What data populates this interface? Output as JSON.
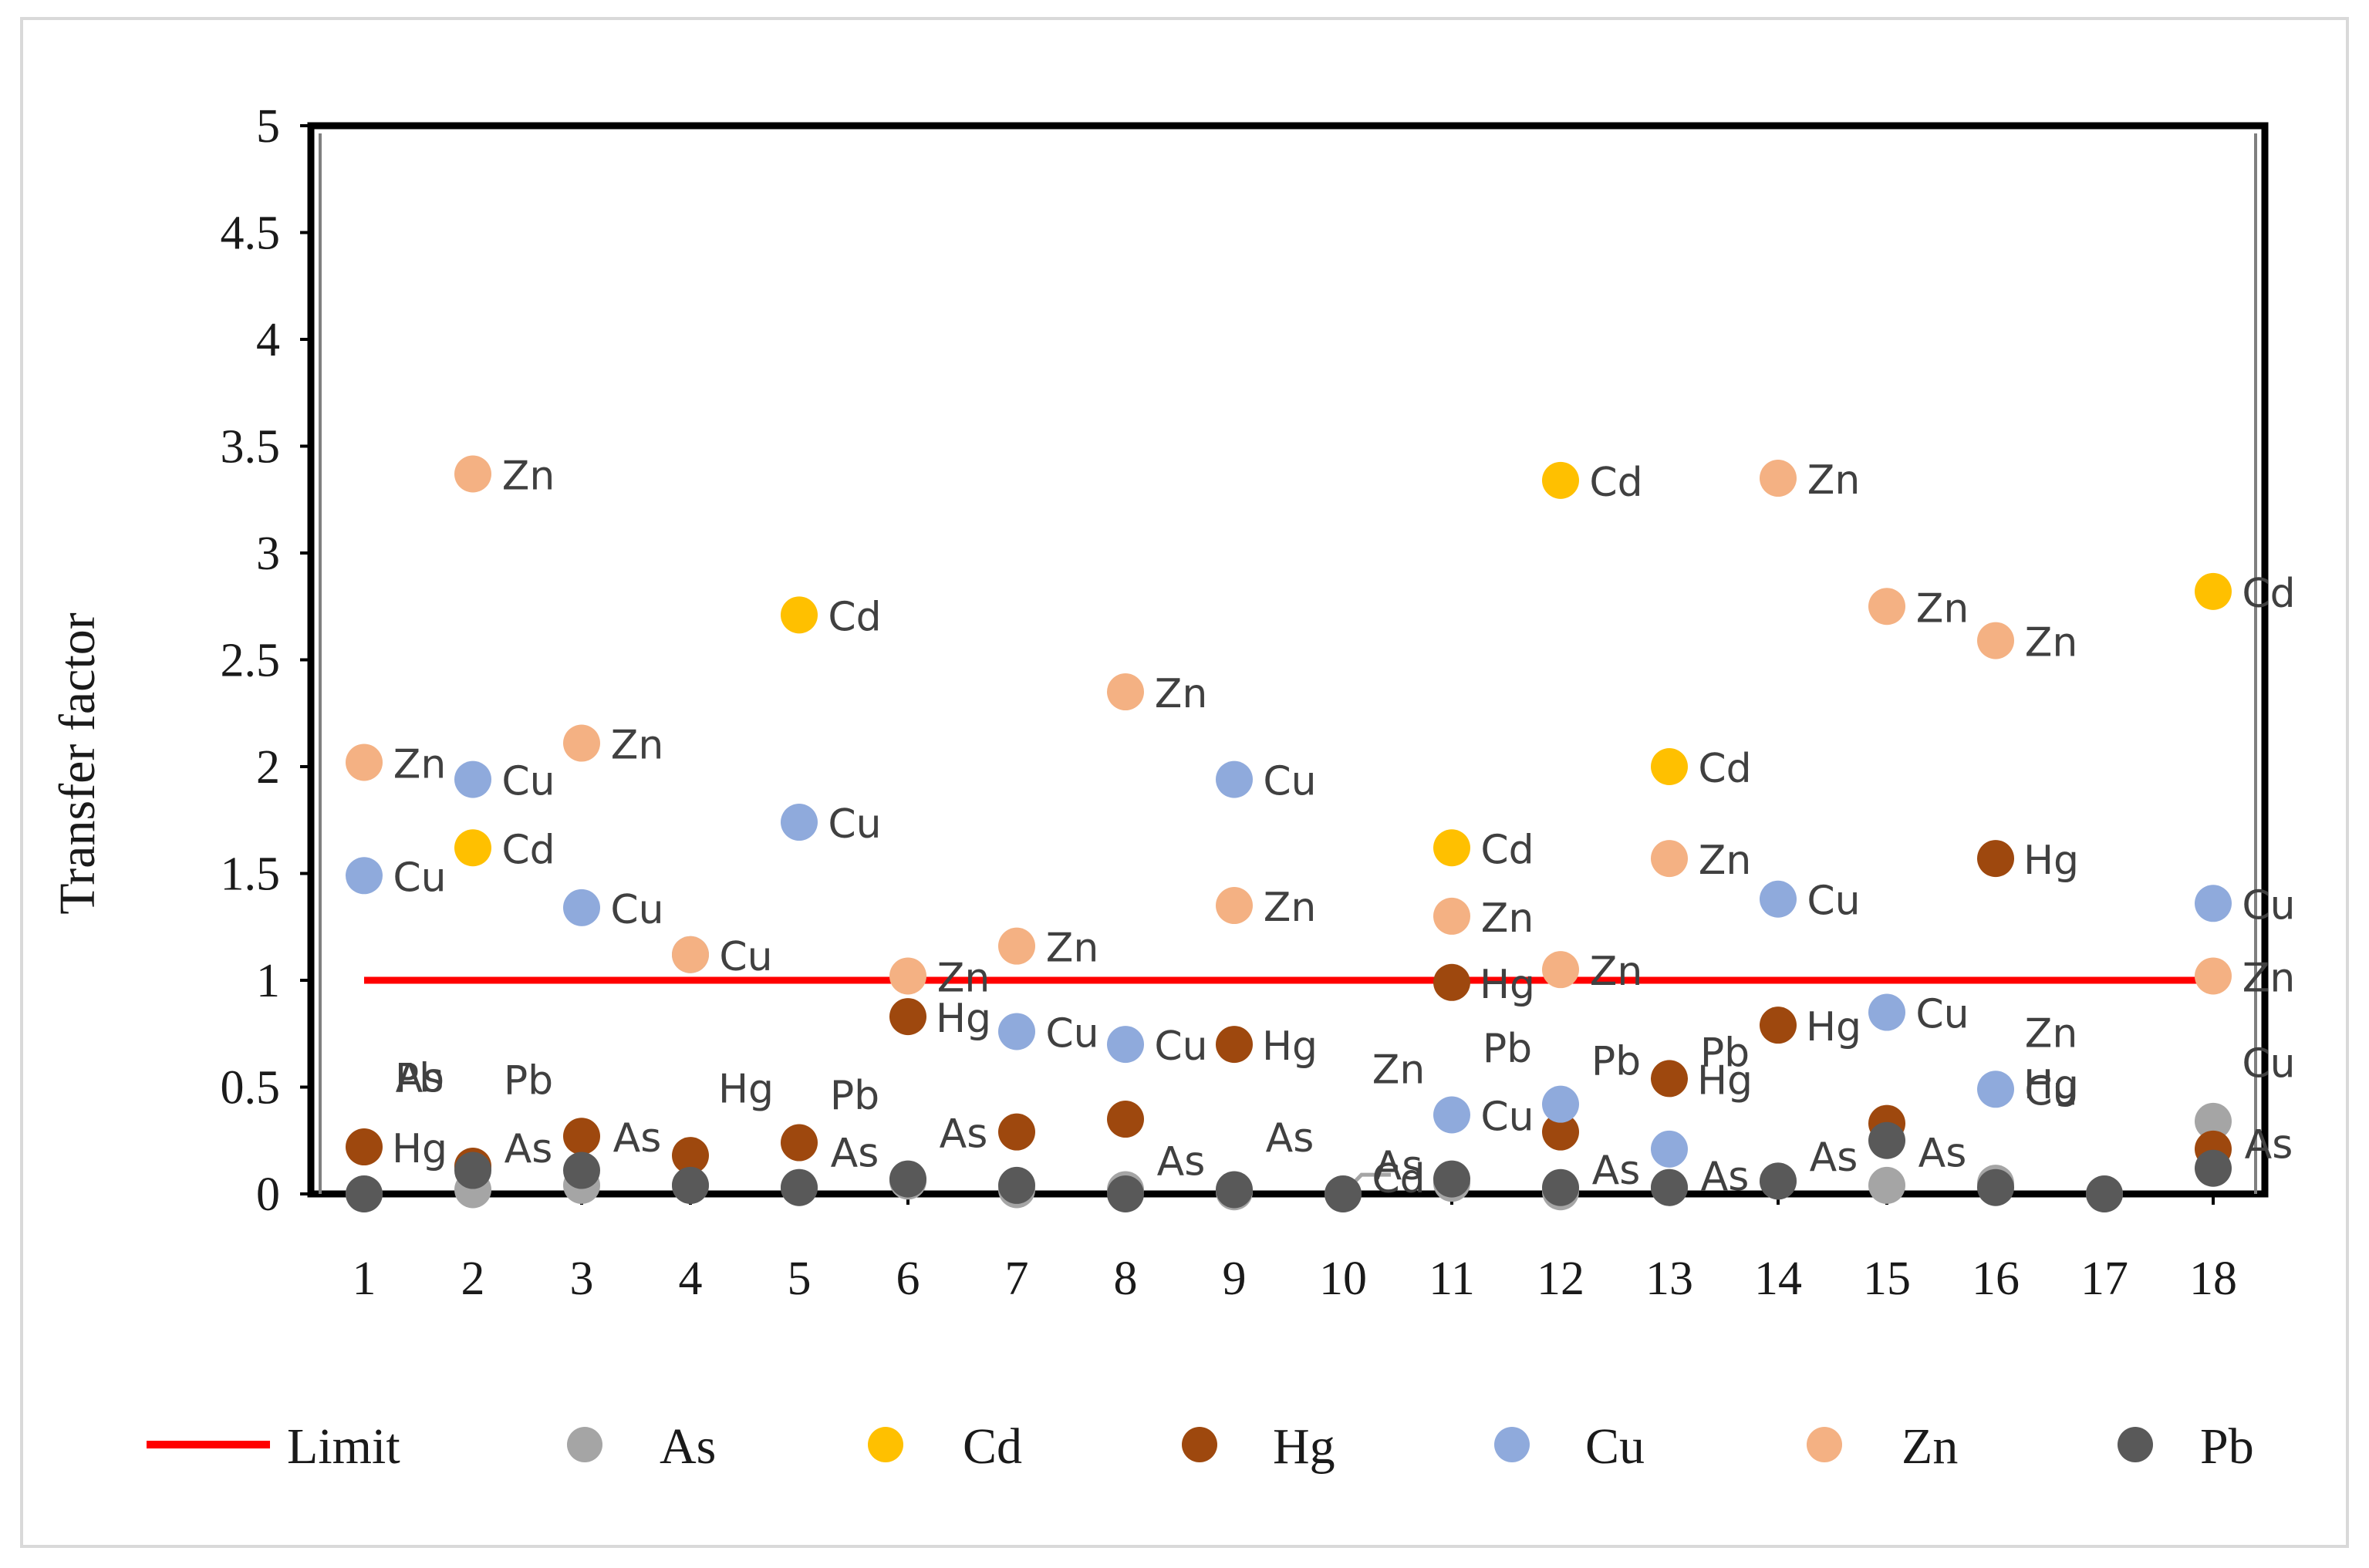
{
  "chart_data": {
    "type": "scatter",
    "title": "",
    "xlabel": "",
    "ylabel": "Transfer factor",
    "ylim": [
      0,
      5
    ],
    "y_ticks": [
      "0",
      "0.5",
      "1",
      "1.5",
      "2",
      "2.5",
      "3",
      "3.5",
      "4",
      "4.5",
      "5"
    ],
    "x_ticks": [
      "1",
      "2",
      "3",
      "4",
      "5",
      "6",
      "7",
      "8",
      "9",
      "10",
      "11",
      "12",
      "13",
      "14",
      "15",
      "16",
      "17",
      "18"
    ],
    "grid": false,
    "legend_position": "bottom",
    "legend": [
      "Limit",
      "As",
      "Cd",
      "Hg",
      "Cu",
      "Zn",
      "Pb"
    ],
    "limit": {
      "name": "Limit",
      "value": 1,
      "color": "#ff0000"
    },
    "series": [
      {
        "name": "As",
        "color": "#a5a5a5",
        "points": [
          {
            "x": 1,
            "y": 0.0
          },
          {
            "x": 2,
            "y": 0.02
          },
          {
            "x": 3,
            "y": 0.04
          },
          {
            "x": 4,
            "y": 0.04
          },
          {
            "x": 5,
            "y": 0.03
          },
          {
            "x": 6,
            "y": 0.06
          },
          {
            "x": 7,
            "y": 0.02
          },
          {
            "x": 8,
            "y": 0.02
          },
          {
            "x": 9,
            "y": 0.01
          },
          {
            "x": 10,
            "y": 0.0
          },
          {
            "x": 11,
            "y": 0.05
          },
          {
            "x": 12,
            "y": 0.01
          },
          {
            "x": 13,
            "y": 0.03
          },
          {
            "x": 14,
            "y": 0.06
          },
          {
            "x": 15,
            "y": 0.04
          },
          {
            "x": 16,
            "y": 0.05
          },
          {
            "x": 17,
            "y": 0.0
          },
          {
            "x": 18,
            "y": 0.34
          }
        ]
      },
      {
        "name": "Cd",
        "color": "#ffc000",
        "points": [
          {
            "x": 2,
            "y": 1.62
          },
          {
            "x": 5,
            "y": 2.71
          },
          {
            "x": 11,
            "y": 1.62
          },
          {
            "x": 12,
            "y": 3.34
          },
          {
            "x": 13,
            "y": 2.0
          },
          {
            "x": 18,
            "y": 2.82
          }
        ]
      },
      {
        "name": "Hg",
        "color": "#9e480e",
        "points": [
          {
            "x": 1,
            "y": 0.22
          },
          {
            "x": 2,
            "y": 0.13
          },
          {
            "x": 3,
            "y": 0.27
          },
          {
            "x": 4,
            "y": 0.18
          },
          {
            "x": 5,
            "y": 0.24
          },
          {
            "x": 6,
            "y": 0.83
          },
          {
            "x": 7,
            "y": 0.29
          },
          {
            "x": 8,
            "y": 0.35
          },
          {
            "x": 9,
            "y": 0.7
          },
          {
            "x": 11,
            "y": 0.99
          },
          {
            "x": 12,
            "y": 0.29
          },
          {
            "x": 13,
            "y": 0.54
          },
          {
            "x": 14,
            "y": 0.79
          },
          {
            "x": 15,
            "y": 0.33
          },
          {
            "x": 16,
            "y": 1.57
          },
          {
            "x": 18,
            "y": 0.21
          }
        ]
      },
      {
        "name": "Cu",
        "color": "#8faadc",
        "points": [
          {
            "x": 1,
            "y": 1.49
          },
          {
            "x": 2,
            "y": 1.94
          },
          {
            "x": 3,
            "y": 1.34
          },
          {
            "x": 4,
            "y": 1.12
          },
          {
            "x": 5,
            "y": 1.74
          },
          {
            "x": 7,
            "y": 0.76
          },
          {
            "x": 8,
            "y": 0.7
          },
          {
            "x": 9,
            "y": 1.94
          },
          {
            "x": 11,
            "y": 0.37
          },
          {
            "x": 12,
            "y": 0.42
          },
          {
            "x": 13,
            "y": 0.21
          },
          {
            "x": 14,
            "y": 1.38
          },
          {
            "x": 15,
            "y": 0.85
          },
          {
            "x": 16,
            "y": 0.49
          },
          {
            "x": 18,
            "y": 1.36
          }
        ]
      },
      {
        "name": "Zn",
        "color": "#f4b183",
        "points": [
          {
            "x": 1,
            "y": 2.02
          },
          {
            "x": 2,
            "y": 3.37
          },
          {
            "x": 3,
            "y": 2.11
          },
          {
            "x": 4,
            "y": 1.12
          },
          {
            "x": 6,
            "y": 1.02
          },
          {
            "x": 7,
            "y": 1.16
          },
          {
            "x": 8,
            "y": 2.35
          },
          {
            "x": 9,
            "y": 1.35
          },
          {
            "x": 11,
            "y": 1.3
          },
          {
            "x": 12,
            "y": 1.05
          },
          {
            "x": 13,
            "y": 1.57
          },
          {
            "x": 14,
            "y": 3.35
          },
          {
            "x": 15,
            "y": 2.75
          },
          {
            "x": 16,
            "y": 2.59
          },
          {
            "x": 18,
            "y": 1.02
          }
        ]
      },
      {
        "name": "Pb",
        "color": "#595959",
        "points": [
          {
            "x": 1,
            "y": 0.0
          },
          {
            "x": 2,
            "y": 0.11
          },
          {
            "x": 3,
            "y": 0.11
          },
          {
            "x": 4,
            "y": 0.04
          },
          {
            "x": 5,
            "y": 0.03
          },
          {
            "x": 6,
            "y": 0.07
          },
          {
            "x": 7,
            "y": 0.04
          },
          {
            "x": 8,
            "y": 0.0
          },
          {
            "x": 9,
            "y": 0.02
          },
          {
            "x": 10,
            "y": 0.0
          },
          {
            "x": 11,
            "y": 0.07
          },
          {
            "x": 12,
            "y": 0.03
          },
          {
            "x": 13,
            "y": 0.03
          },
          {
            "x": 14,
            "y": 0.06
          },
          {
            "x": 15,
            "y": 0.25
          },
          {
            "x": 16,
            "y": 0.03
          },
          {
            "x": 17,
            "y": 0.0
          },
          {
            "x": 18,
            "y": 0.12
          }
        ]
      }
    ],
    "data_labels": [
      {
        "text": "Zn",
        "x": 2,
        "y": 3.37
      },
      {
        "text": "Cd",
        "x": 12,
        "y": 3.34
      },
      {
        "text": "Zn",
        "x": 14,
        "y": 3.35
      },
      {
        "text": "Cd",
        "x": 5,
        "y": 2.71
      },
      {
        "text": "Zn",
        "x": 15,
        "y": 2.75
      },
      {
        "text": "Zn",
        "x": 16,
        "y": 2.59
      },
      {
        "text": "Cd",
        "x": 18,
        "y": 2.82
      },
      {
        "text": "Zn",
        "x": 8,
        "y": 2.35
      },
      {
        "text": "Zn",
        "x": 1,
        "y": 2.02
      },
      {
        "text": "Cu",
        "x": 2,
        "y": 1.94
      },
      {
        "text": "Zn",
        "x": 3,
        "y": 2.11
      },
      {
        "text": "Cu",
        "x": 9,
        "y": 1.94
      },
      {
        "text": "Cd",
        "x": 13,
        "y": 2.0
      },
      {
        "text": "Cd",
        "x": 2,
        "y": 1.62
      },
      {
        "text": "Cu",
        "x": 5,
        "y": 1.74
      },
      {
        "text": "Cd",
        "x": 11,
        "y": 1.62
      },
      {
        "text": "Cu",
        "x": 1,
        "y": 1.49
      },
      {
        "text": "Zn",
        "x": 13,
        "y": 1.57
      },
      {
        "text": "Hg",
        "x": 16,
        "y": 1.57
      },
      {
        "text": "Cu",
        "x": 3,
        "y": 1.34
      },
      {
        "text": "Cu",
        "x": 14,
        "y": 1.38
      },
      {
        "text": "Cu",
        "x": 18,
        "y": 1.36
      },
      {
        "text": "Zn",
        "x": 9,
        "y": 1.35
      },
      {
        "text": "Zn",
        "x": 11,
        "y": 1.3
      },
      {
        "text": "Cu",
        "x": 4,
        "y": 1.12
      },
      {
        "text": "Zn",
        "x": 7,
        "y": 1.16
      },
      {
        "text": "Zn",
        "x": 6,
        "y": 1.02
      },
      {
        "text": "Zn",
        "x": 12,
        "y": 1.05
      },
      {
        "text": "Zn",
        "x": 18,
        "y": 1.02
      },
      {
        "text": "Hg",
        "x": 11,
        "y": 0.99
      },
      {
        "text": "Hg",
        "x": 6,
        "y": 0.83
      },
      {
        "text": "Cu",
        "x": 7,
        "y": 0.76
      },
      {
        "text": "Cu",
        "x": 8,
        "y": 0.7
      },
      {
        "text": "Hg",
        "x": 9,
        "y": 0.7
      },
      {
        "text": "Cu",
        "x": 15,
        "y": 0.85
      },
      {
        "text": "Hg",
        "x": 14,
        "y": 0.79
      },
      {
        "text": "Zn",
        "x": 16,
        "y": 0.76
      },
      {
        "text": "As",
        "x": 1,
        "y": 0.55
      },
      {
        "text": "Pb",
        "x": 1,
        "y": 0.55
      },
      {
        "text": "Pb",
        "x": 2,
        "y": 0.54
      },
      {
        "text": "Hg",
        "x": 4,
        "y": 0.5
      },
      {
        "text": "Pb",
        "x": 5,
        "y": 0.47
      },
      {
        "text": "Zn",
        "x": 10,
        "y": 0.59
      },
      {
        "text": "Pb",
        "x": 11,
        "y": 0.69
      },
      {
        "text": "Pb",
        "x": 12,
        "y": 0.63
      },
      {
        "text": "Pb",
        "x": 13,
        "y": 0.67
      },
      {
        "text": "Hg",
        "x": 13,
        "y": 0.54
      },
      {
        "text": "Cu",
        "x": 18,
        "y": 0.62
      },
      {
        "text": "Hg",
        "x": 16,
        "y": 0.52
      },
      {
        "text": "Cu",
        "x": 16,
        "y": 0.49
      },
      {
        "text": "Cu",
        "x": 11,
        "y": 0.37
      },
      {
        "text": "Hg",
        "x": 1,
        "y": 0.22
      },
      {
        "text": "As",
        "x": 2,
        "y": 0.22
      },
      {
        "text": "As",
        "x": 3,
        "y": 0.27
      },
      {
        "text": "As",
        "x": 5,
        "y": 0.2
      },
      {
        "text": "As",
        "x": 6,
        "y": 0.29
      },
      {
        "text": "As",
        "x": 8,
        "y": 0.16
      },
      {
        "text": "As",
        "x": 9,
        "y": 0.27
      },
      {
        "text": "As",
        "x": 10,
        "y": 0.14
      },
      {
        "text": "Cd",
        "x": 10,
        "y": 0.08
      },
      {
        "text": "As",
        "x": 12,
        "y": 0.12
      },
      {
        "text": "As",
        "x": 13,
        "y": 0.09
      },
      {
        "text": "As",
        "x": 14,
        "y": 0.18
      },
      {
        "text": "As",
        "x": 15,
        "y": 0.2
      },
      {
        "text": "As",
        "x": 18,
        "y": 0.24
      }
    ]
  }
}
